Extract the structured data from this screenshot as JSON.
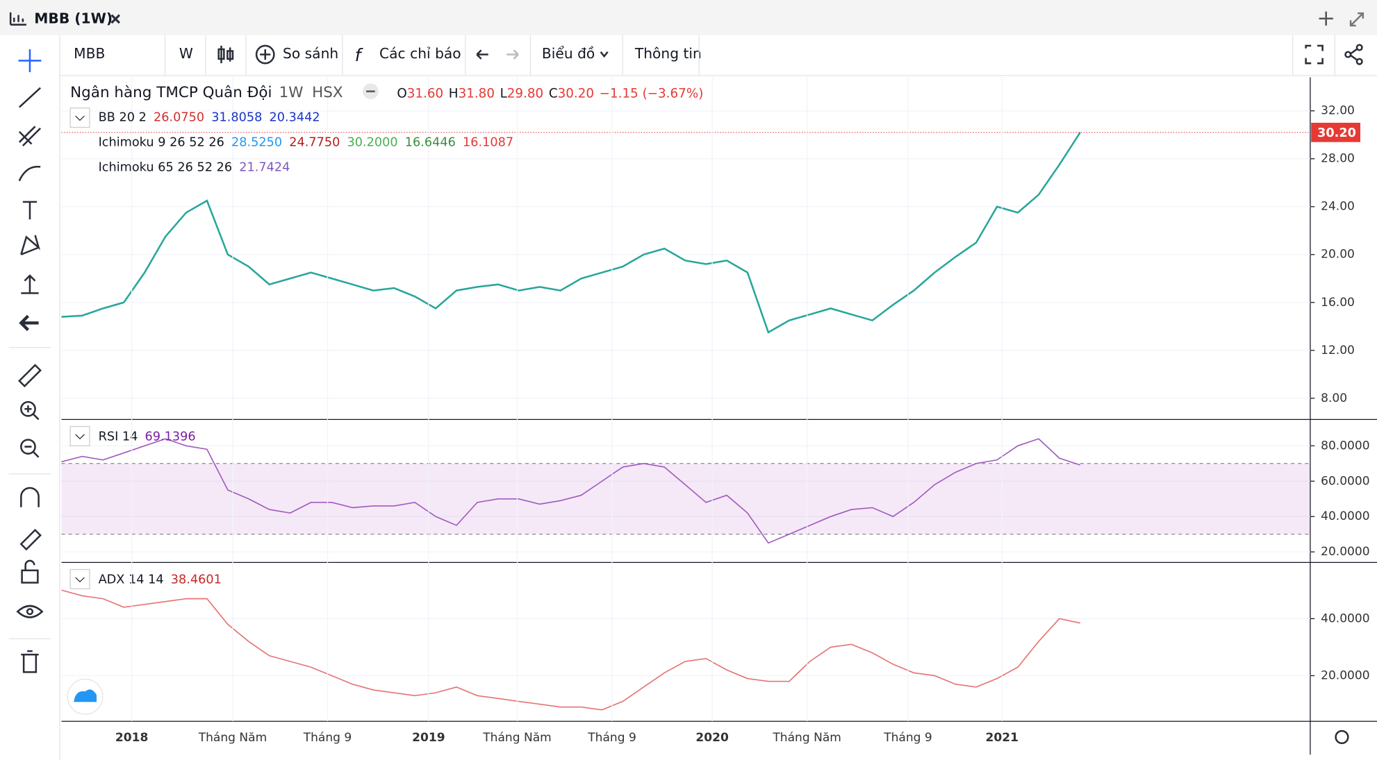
{
  "window": {
    "title": "MBB (1W)"
  },
  "toolbar": {
    "symbol": "MBB",
    "interval": "W",
    "compare": "So sánh",
    "indicators": "Các chỉ báo",
    "chart_menu": "Biểu đồ",
    "info": "Thông tin"
  },
  "header": {
    "name": "Ngân hàng TMCP Quân Đội",
    "interval": "1W",
    "exchange": "HSX",
    "ohlc": [
      {
        "label": "O",
        "value": "31.60"
      },
      {
        "label": "H",
        "value": "31.80"
      },
      {
        "label": "L",
        "value": "29.80"
      },
      {
        "label": "C",
        "value": "30.20"
      }
    ],
    "change": "−1.15 (−3.67%)",
    "indicators": [
      {
        "name": "BB 20 2",
        "values": [
          {
            "text": "26.0750",
            "color": "#d32f2f"
          },
          {
            "text": "31.8058",
            "color": "#1a33c9"
          },
          {
            "text": "20.3442",
            "color": "#1a33c9"
          }
        ]
      },
      {
        "name": "Ichimoku 9 26 52 26",
        "values": [
          {
            "text": "28.5250",
            "color": "#2196f3"
          },
          {
            "text": "24.7750",
            "color": "#b71c1c"
          },
          {
            "text": "30.2000",
            "color": "#4caf50"
          },
          {
            "text": "16.6446",
            "color": "#388e3c"
          },
          {
            "text": "16.1087",
            "color": "#e53935"
          }
        ]
      },
      {
        "name": "Ichimoku 65 26 52 26",
        "values": [
          {
            "text": "21.7424",
            "color": "#7e57c2"
          }
        ]
      }
    ]
  },
  "time_axis": [
    "2018",
    "Tháng Năm",
    "Tháng 9",
    "2019",
    "Tháng Năm",
    "Tháng 9",
    "2020",
    "Tháng Năm",
    "Tháng 9",
    "2021"
  ],
  "chart_data": [
    {
      "type": "line",
      "last_price_label": "30.20",
      "series": [
        {
          "name": "MBB",
          "color": "#26a69a",
          "values": [
            14.8,
            14.9,
            15.5,
            16,
            18.5,
            21.5,
            23.5,
            24.5,
            20,
            19,
            17.5,
            18,
            18.5,
            18,
            17.5,
            17,
            17.2,
            16.5,
            15.5,
            17,
            17.3,
            17.5,
            17,
            17.3,
            17,
            18,
            18.5,
            19,
            20,
            20.5,
            19.5,
            19.2,
            19.5,
            18.5,
            13.5,
            14.5,
            15,
            15.5,
            15,
            14.5,
            15.8,
            17,
            18.5,
            19.8,
            21,
            24,
            23.5,
            25,
            27.5,
            30.2
          ]
        }
      ],
      "ylim": [
        6.3,
        34.8
      ],
      "yticks": [
        {
          "value": 8,
          "label": "8.00"
        },
        {
          "value": 12,
          "label": "12.00"
        },
        {
          "value": 16,
          "label": "16.00"
        },
        {
          "value": 20,
          "label": "20.00"
        },
        {
          "value": 24,
          "label": "24.00"
        },
        {
          "value": 28,
          "label": "28.00"
        },
        {
          "value": 32,
          "label": "32.00"
        }
      ],
      "grid": true
    },
    {
      "type": "line",
      "title": "RSI 14",
      "last_value_label": "69.1396",
      "levels": [
        70,
        30
      ],
      "series": [
        {
          "name": "RSI",
          "color": "#a05bc0",
          "values": [
            71,
            74,
            72,
            76,
            80,
            84,
            80,
            78,
            55,
            50,
            44,
            42,
            48,
            48,
            45,
            46,
            46,
            48,
            40,
            35,
            48,
            50,
            50,
            47,
            49,
            52,
            60,
            68,
            70,
            68,
            58,
            48,
            52,
            42,
            25,
            30,
            35,
            40,
            44,
            45,
            40,
            48,
            58,
            65,
            70,
            72,
            80,
            84,
            73,
            69.1396
          ]
        }
      ],
      "ylim": [
        14.5,
        94.4
      ],
      "yticks": [
        {
          "value": 20,
          "label": "20.0000"
        },
        {
          "value": 40,
          "label": "40.0000"
        },
        {
          "value": 60,
          "label": "60.0000"
        },
        {
          "value": 80,
          "label": "80.0000"
        }
      ],
      "grid": true
    },
    {
      "type": "line",
      "title": "ADX 14 14",
      "last_value_label": "38.4601",
      "series": [
        {
          "name": "ADX",
          "color": "#e57373",
          "values": [
            50,
            48,
            47,
            44,
            45,
            46,
            47,
            47,
            38,
            32,
            27,
            25,
            23,
            20,
            17,
            15,
            14,
            13,
            14,
            16,
            13,
            12,
            11,
            10,
            9,
            9,
            8,
            11,
            16,
            21,
            25,
            26,
            22,
            19,
            18,
            18,
            25,
            30,
            31,
            28,
            24,
            21,
            20,
            17,
            16,
            19,
            23,
            32,
            40,
            38.4601
          ]
        }
      ],
      "ylim": [
        4,
        59.4
      ],
      "yticks": [
        {
          "value": 20,
          "label": "20.0000"
        },
        {
          "value": 40,
          "label": "40.0000"
        }
      ],
      "grid": true
    }
  ]
}
